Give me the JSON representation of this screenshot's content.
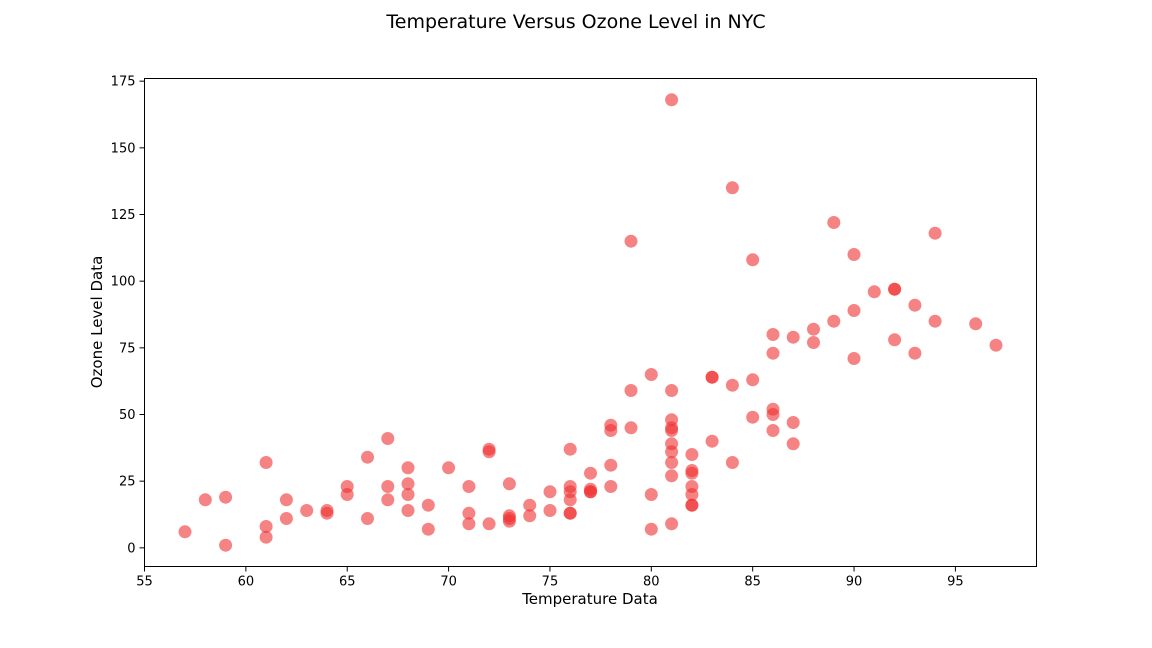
{
  "chart_data": {
    "type": "scatter",
    "title": "Temperature Versus Ozone Level in NYC",
    "xlabel": "Temperature Data",
    "ylabel": "Ozone Level Data",
    "xlim": [
      55,
      99
    ],
    "ylim": [
      -7,
      176
    ],
    "xticks": [
      55,
      60,
      65,
      70,
      75,
      80,
      85,
      90,
      95
    ],
    "yticks": [
      0,
      25,
      50,
      75,
      100,
      125,
      150,
      175
    ],
    "grid": false,
    "marker_color": "#f03030",
    "marker_alpha": 0.6,
    "series": [
      {
        "points": [
          [
            57,
            6
          ],
          [
            58,
            18
          ],
          [
            59,
            19
          ],
          [
            59,
            1
          ],
          [
            61,
            32
          ],
          [
            61,
            8
          ],
          [
            61,
            4
          ],
          [
            62,
            18
          ],
          [
            62,
            11
          ],
          [
            63,
            14
          ],
          [
            64,
            14
          ],
          [
            64,
            13
          ],
          [
            65,
            23
          ],
          [
            65,
            20
          ],
          [
            66,
            34
          ],
          [
            66,
            11
          ],
          [
            67,
            41
          ],
          [
            67,
            23
          ],
          [
            67,
            18
          ],
          [
            68,
            30
          ],
          [
            68,
            24
          ],
          [
            68,
            20
          ],
          [
            68,
            14
          ],
          [
            69,
            16
          ],
          [
            69,
            7
          ],
          [
            70,
            30
          ],
          [
            71,
            23
          ],
          [
            71,
            13
          ],
          [
            71,
            9
          ],
          [
            72,
            37
          ],
          [
            72,
            36
          ],
          [
            72,
            9
          ],
          [
            73,
            24
          ],
          [
            73,
            12
          ],
          [
            73,
            11
          ],
          [
            73,
            10
          ],
          [
            74,
            16
          ],
          [
            74,
            12
          ],
          [
            75,
            21
          ],
          [
            75,
            14
          ],
          [
            76,
            37
          ],
          [
            76,
            23
          ],
          [
            76,
            21
          ],
          [
            76,
            18
          ],
          [
            76,
            13
          ],
          [
            76,
            13
          ],
          [
            77,
            28
          ],
          [
            77,
            22
          ],
          [
            77,
            21
          ],
          [
            77,
            21
          ],
          [
            78,
            46
          ],
          [
            78,
            44
          ],
          [
            78,
            31
          ],
          [
            78,
            23
          ],
          [
            79,
            115
          ],
          [
            79,
            59
          ],
          [
            79,
            45
          ],
          [
            80,
            65
          ],
          [
            80,
            20
          ],
          [
            80,
            7
          ],
          [
            81,
            168
          ],
          [
            81,
            59
          ],
          [
            81,
            48
          ],
          [
            81,
            45
          ],
          [
            81,
            44
          ],
          [
            81,
            39
          ],
          [
            81,
            36
          ],
          [
            81,
            32
          ],
          [
            81,
            27
          ],
          [
            81,
            9
          ],
          [
            82,
            35
          ],
          [
            82,
            29
          ],
          [
            82,
            28
          ],
          [
            82,
            23
          ],
          [
            82,
            20
          ],
          [
            82,
            16
          ],
          [
            82,
            16
          ],
          [
            83,
            64
          ],
          [
            83,
            64
          ],
          [
            83,
            40
          ],
          [
            84,
            135
          ],
          [
            84,
            61
          ],
          [
            84,
            32
          ],
          [
            85,
            108
          ],
          [
            85,
            63
          ],
          [
            85,
            49
          ],
          [
            86,
            80
          ],
          [
            86,
            73
          ],
          [
            86,
            52
          ],
          [
            86,
            50
          ],
          [
            86,
            44
          ],
          [
            87,
            79
          ],
          [
            87,
            47
          ],
          [
            87,
            39
          ],
          [
            88,
            82
          ],
          [
            88,
            77
          ],
          [
            89,
            122
          ],
          [
            89,
            85
          ],
          [
            90,
            110
          ],
          [
            90,
            89
          ],
          [
            90,
            71
          ],
          [
            91,
            96
          ],
          [
            92,
            97
          ],
          [
            92,
            97
          ],
          [
            92,
            78
          ],
          [
            93,
            91
          ],
          [
            93,
            73
          ],
          [
            94,
            118
          ],
          [
            94,
            85
          ],
          [
            96,
            84
          ],
          [
            97,
            76
          ]
        ]
      }
    ]
  }
}
